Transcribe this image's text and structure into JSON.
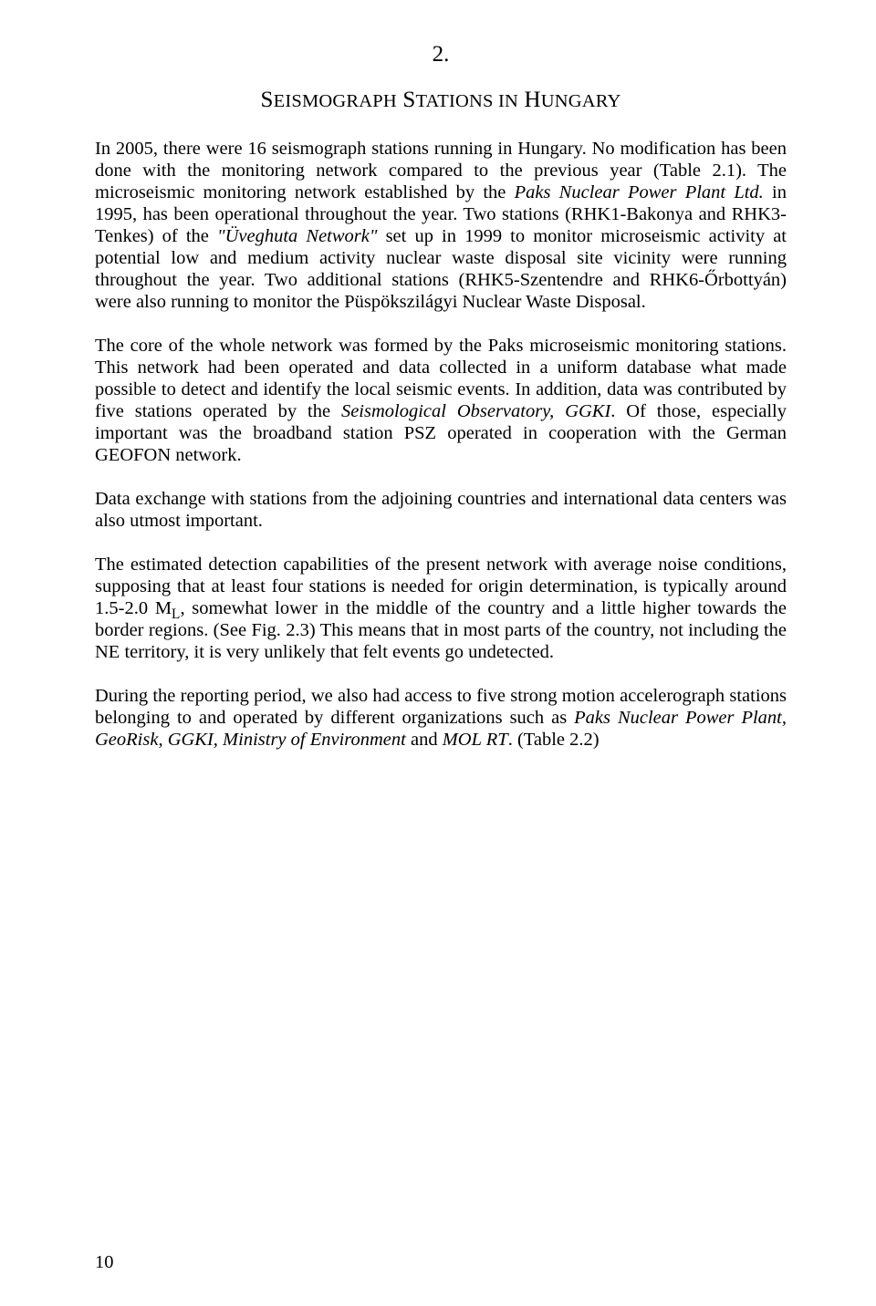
{
  "chapter": {
    "number": "2.",
    "title_html": "S<span style=\"font-size:0.82em\">EISMOGRAPH</span> S<span style=\"font-size:0.82em\">TATIONS IN</span> H<span style=\"font-size:0.82em\">UNGARY</span>"
  },
  "paragraphs": {
    "p1": "In 2005, there were 16 seismograph stations running in Hungary. No modification has been done with the monitoring network compared to the previous year (Table 2.1). The microseismic monitoring network established by the <span class=\"italic\">Paks Nuclear Power Plant Ltd.</span> in 1995, has been operational throughout the year. Two stations (RHK1-Bakonya and RHK3-Tenkes) of the <span class=\"italic\">\"Üveghuta Network\"</span> set up in 1999 to monitor microseismic activity at potential low and medium activity nuclear waste disposal site vicinity were running throughout the year. Two additional stations (RHK5-Szentendre and RHK6-Őrbottyán) were also running to monitor the Püspökszilágyi Nuclear Waste Disposal.",
    "p2": "The core of the whole network was formed by the Paks microseismic monitoring stations. This network had been operated and data collected in a uniform database what made possible to detect and identify the local seismic events. In addition, data was contributed by five stations operated by the <span class=\"italic\">Seismological Observatory, GGKI</span>. Of those, especially important was the broadband station PSZ operated in cooperation with the German GEOFON network.",
    "p3": "Data exchange with stations from the adjoining countries and international data centers was also utmost important.",
    "p4": "The estimated detection capabilities of the present network with average noise conditions, supposing that at least four stations is needed for origin determination, is typically around 1.5-2.0 M<span class=\"sub\">L</span>, somewhat lower in the middle of the country and a little higher towards the border regions. (See Fig. 2.3) This means that in most parts of the country, not including the NE territory, it is very unlikely that felt events go undetected.",
    "p5": "During the reporting period, we also had access to five strong motion accelerograph stations belonging to and operated by different organizations such as <span class=\"italic\">Paks Nuclear Power Plant, GeoRisk, GGKI, Ministry of Environment</span> and <span class=\"italic\">MOL RT</span>. (Table 2.2)"
  },
  "page_number": "10"
}
